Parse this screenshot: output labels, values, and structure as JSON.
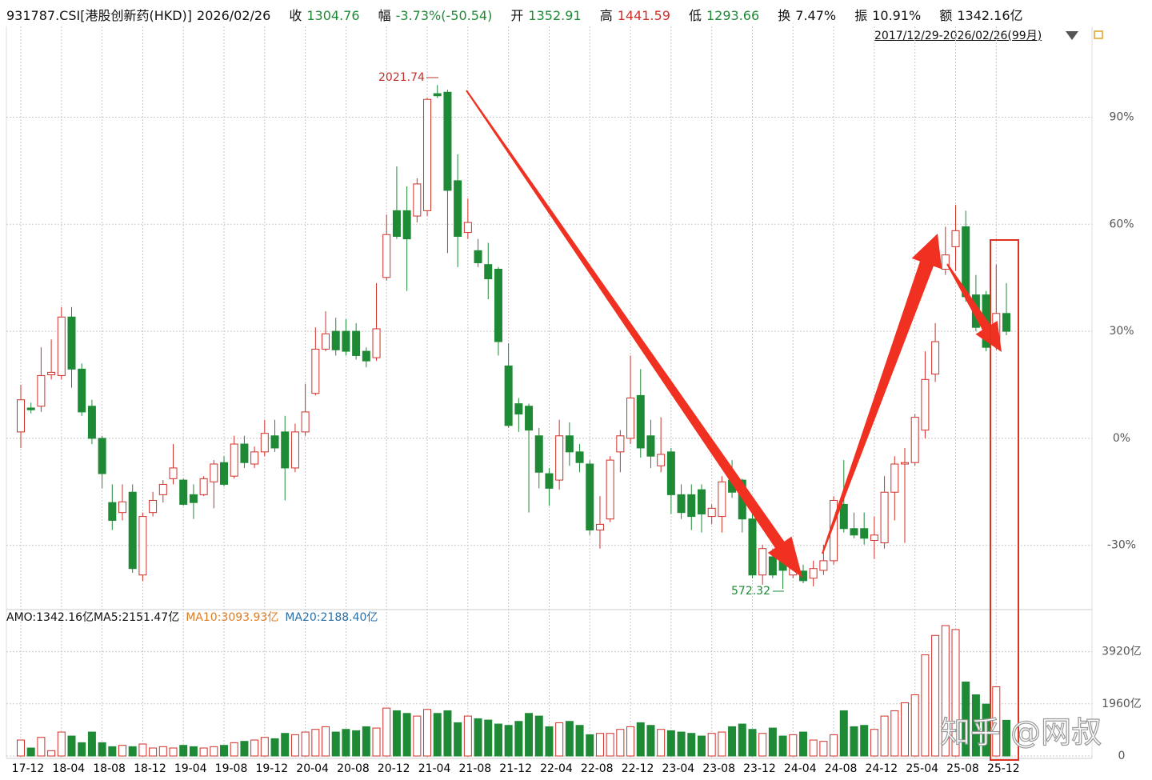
{
  "header": {
    "symbol": "931787.CSI[港股创新药(HKD)]",
    "date": "2026/02/26",
    "close_label": "收",
    "close": "1304.76",
    "change_label": "幅",
    "change": "-3.73%(-50.54)",
    "open_label": "开",
    "open": "1352.91",
    "high_label": "高",
    "high": "1441.59",
    "low_label": "低",
    "low": "1293.66",
    "turnover_label": "换",
    "turnover": "7.47%",
    "amplitude_label": "振",
    "amplitude": "10.91%",
    "amount_label": "额",
    "amount": "1342.16亿"
  },
  "range_label": "2017/12/29-2026/02/26(99月)",
  "watermark": "知乎 @网叔",
  "chart_data": [
    {
      "type": "candlestick",
      "up_color": "#d0302a",
      "down_color": "#1e8a36",
      "annotations": [
        "2021.74",
        "572.32"
      ],
      "categories": [
        "17-12",
        null,
        null,
        null,
        "18-04",
        null,
        null,
        null,
        "18-08",
        null,
        null,
        null,
        "18-12",
        null,
        null,
        null,
        "19-04",
        null,
        null,
        null,
        "19-08",
        null,
        null,
        null,
        "19-12",
        null,
        null,
        null,
        "20-04",
        null,
        null,
        null,
        "20-08",
        null,
        null,
        null,
        "20-12",
        null,
        null,
        null,
        "21-04",
        null,
        null,
        null,
        "21-08",
        null,
        null,
        null,
        "21-12",
        null,
        null,
        null,
        "22-04",
        null,
        null,
        null,
        "22-08",
        null,
        null,
        null,
        "22-12",
        null,
        null,
        null,
        "23-04",
        null,
        null,
        null,
        "23-08",
        null,
        null,
        null,
        "23-12",
        null,
        null,
        null,
        "24-04",
        null,
        null,
        null,
        "24-08",
        null,
        null,
        null,
        "24-12",
        null,
        null,
        null,
        "25-04",
        null,
        null,
        null,
        "25-08",
        null,
        null,
        null,
        "25-12",
        null
      ],
      "open": [
        1.8,
        8.5,
        9,
        17.8,
        17.6,
        34,
        19.4,
        9,
        0,
        -18,
        -20.8,
        -15.1,
        -38.3,
        -20.8,
        -15.8,
        -11.3,
        -11.7,
        -15.8,
        -15.8,
        -12.2,
        -6.8,
        -10.6,
        -1.6,
        -7.2,
        -3.8,
        0.7,
        1.8,
        -8.3,
        1.8,
        12.6,
        25,
        30,
        30,
        30,
        24.4,
        22.6,
        45.1,
        63.8,
        63.8,
        62.3,
        63.8,
        96.6,
        97,
        72.2,
        57.7,
        52.6,
        48.7,
        47.4,
        20.3,
        9.7,
        9,
        0.7,
        -9.9,
        -11.7,
        0.7,
        -3.8,
        -7.2,
        -25.7,
        -22.6,
        -3.8,
        0,
        12,
        0.7,
        -7.7,
        -3.8,
        -15.8,
        -15.8,
        -14.4,
        -21.9,
        -21.9,
        -11.7,
        -11.7,
        -22.6,
        -38.3,
        -33.2,
        -34.3,
        -38.3,
        -37.2,
        -39.2,
        -37,
        -34.3,
        -18.5,
        -25.3,
        -25.3,
        -28.6,
        -29.3,
        -15.1,
        -7.2,
        -6.8,
        2.3,
        18,
        47.4,
        53.7,
        59.3,
        40.2,
        40.2,
        26.2,
        35
      ],
      "close": [
        10.8,
        8,
        17.6,
        18.5,
        34,
        19.4,
        7.4,
        0,
        -9.9,
        -23,
        -17.8,
        -36.5,
        -21.9,
        -17.4,
        -12.9,
        -8.3,
        -18.5,
        -18,
        -11.3,
        -7.2,
        -12.9,
        -1.6,
        -6.8,
        -3.8,
        1.4,
        -2.7,
        -8.3,
        1.8,
        7.4,
        25,
        29.3,
        24.8,
        24.4,
        23.2,
        21.7,
        30.7,
        57.1,
        56.6,
        55.9,
        71.3,
        95,
        96,
        69.5,
        56.6,
        60.5,
        49.2,
        44.7,
        27.1,
        3.6,
        6.8,
        2.3,
        -9.5,
        -14,
        0.7,
        -3.8,
        -6.8,
        -25.7,
        -24.1,
        -6.1,
        0.7,
        11.3,
        -2.7,
        -5,
        -4.5,
        -15.8,
        -20.8,
        -21.9,
        -21.2,
        -19.6,
        -12.2,
        -15.1,
        -22.6,
        -38.3,
        -30.9,
        -38.3,
        -37,
        -35.4,
        -39.9,
        -36.5,
        -34.3,
        -17.4,
        -25.3,
        -27.1,
        -28,
        -27.1,
        -15.1,
        -7.2,
        -6.8,
        5.9,
        16.5,
        27.1,
        51.4,
        58.2,
        39.7,
        31.1,
        25.5,
        35,
        30
      ],
      "high": [
        15,
        10,
        25.5,
        27.7,
        36.8,
        36.8,
        21,
        10.8,
        0.7,
        -12.9,
        -12.9,
        -12.9,
        -20.8,
        -15,
        -11.7,
        -1.6,
        -11.3,
        -12.9,
        -10.6,
        -6.1,
        -5,
        0.7,
        0.7,
        -2.3,
        5.2,
        5.2,
        6.3,
        4.1,
        15.3,
        31.1,
        35.6,
        33.8,
        33.4,
        32.3,
        25.5,
        43.5,
        62.7,
        76.2,
        70.6,
        72.9,
        95.4,
        99,
        97.7,
        79.6,
        67.2,
        55.9,
        54.8,
        48,
        26.6,
        11.3,
        9.7,
        2.9,
        -8.3,
        5.2,
        4.5,
        -1.6,
        -6.1,
        -16.2,
        -5,
        2.3,
        23.2,
        19.4,
        5.2,
        5.9,
        -2.7,
        -12.9,
        -12.9,
        -12.9,
        -18.5,
        -10.6,
        -6.1,
        -11.3,
        -19.6,
        -29.8,
        -30.9,
        -32,
        -33.2,
        -35.4,
        -34.3,
        -29.8,
        -16.2,
        -6.1,
        -20.8,
        -20.8,
        -21.9,
        -10.6,
        -5,
        -2.7,
        6.8,
        24.4,
        32.3,
        59.3,
        65.4,
        63.8,
        45.8,
        41.3,
        48.7,
        43.5
      ],
      "low": [
        -2.7,
        7,
        7.4,
        16.5,
        16.5,
        14.2,
        6.3,
        -1.6,
        -14,
        -25.7,
        -23,
        -37.7,
        -40,
        -21.9,
        -18,
        -12.9,
        -18.9,
        -22.6,
        -16.2,
        -19.6,
        -13.5,
        -11.3,
        -8.3,
        -8.3,
        -5,
        -3.8,
        -17.4,
        -9.5,
        0.7,
        12,
        24.4,
        23.2,
        23.2,
        22.1,
        19.9,
        21.7,
        44.2,
        55.9,
        41.3,
        60.5,
        62.3,
        95.4,
        51.9,
        48,
        55.9,
        48,
        39,
        23.2,
        2.9,
        1.8,
        -20.8,
        -14,
        -18.9,
        -14.4,
        -7.7,
        -9.5,
        -27.1,
        -30.9,
        -23.5,
        -9.5,
        -1.6,
        -5.4,
        -8.3,
        -9.5,
        -21.2,
        -22.6,
        -25.7,
        -26.4,
        -24.1,
        -26.4,
        -16.7,
        -26.4,
        -39.2,
        -41,
        -39.2,
        -42.2,
        -39.2,
        -40.6,
        -41.5,
        -38.3,
        -35.4,
        -26.4,
        -28,
        -29.8,
        -33.8,
        -30.9,
        -23,
        -29.3,
        -7.7,
        0,
        15.8,
        45.8,
        46.9,
        38.3,
        30,
        24.4,
        24.8,
        28.9
      ],
      "ylim": [
        -48,
        115
      ],
      "yticks": [
        {
          "value": 90,
          "label": "90%"
        },
        {
          "value": 60,
          "label": "60%"
        },
        {
          "value": 30,
          "label": "30%"
        },
        {
          "value": 0,
          "label": "0%"
        },
        {
          "value": -30,
          "label": "-30%"
        }
      ],
      "grid": true
    },
    {
      "type": "bar",
      "legend": [
        {
          "text": "AMO:1342.16亿MA5:2151.47亿",
          "color": "#111111"
        },
        {
          "text": "MA10:3093.93亿",
          "color": "#e07b20"
        },
        {
          "text": "MA20:2188.40亿",
          "color": "#2a6fa8"
        }
      ],
      "values": [
        600,
        300,
        700,
        200,
        900,
        750,
        500,
        900,
        500,
        350,
        400,
        350,
        450,
        300,
        350,
        300,
        400,
        350,
        300,
        350,
        400,
        500,
        550,
        600,
        700,
        650,
        850,
        800,
        900,
        1000,
        1100,
        900,
        1000,
        950,
        1100,
        1050,
        1800,
        1700,
        1600,
        1500,
        1750,
        1600,
        1700,
        1250,
        1500,
        1400,
        1350,
        1200,
        1150,
        1300,
        1600,
        1500,
        1100,
        1250,
        1300,
        1150,
        800,
        850,
        850,
        1000,
        1100,
        1250,
        1150,
        1000,
        950,
        900,
        850,
        750,
        850,
        900,
        1100,
        1200,
        1000,
        850,
        1050,
        750,
        800,
        900,
        600,
        550,
        800,
        1700,
        1100,
        1150,
        1000,
        1500,
        1700,
        2000,
        2300,
        3800,
        4530,
        4900,
        4750,
        2780,
        2300,
        1950,
        2600,
        1342.16
      ],
      "ylim": [
        0,
        5500
      ],
      "yticks": [
        {
          "value": 3920,
          "label": "3920亿"
        },
        {
          "value": 1960,
          "label": "1960亿"
        },
        0
      ],
      "grid": true
    }
  ]
}
